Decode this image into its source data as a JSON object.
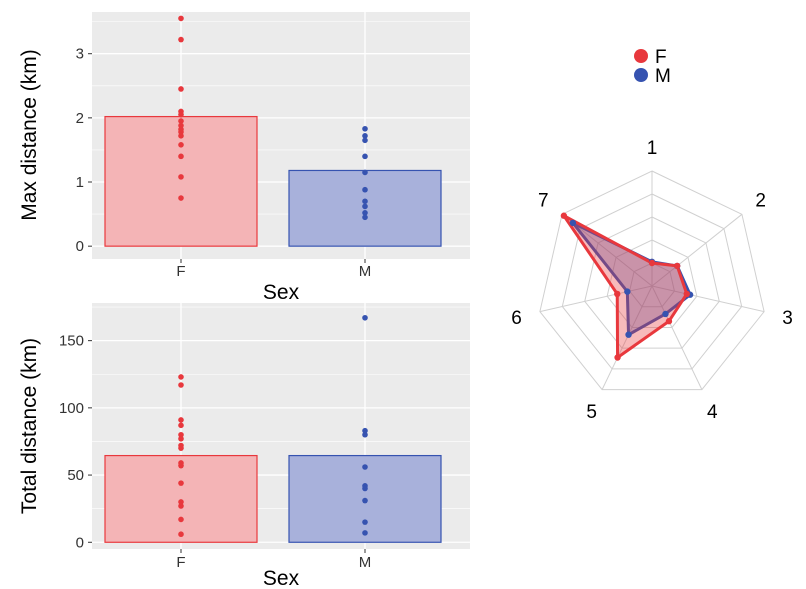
{
  "colors": {
    "F": "#e8383d",
    "M": "#3653b0",
    "F_fill": "#f4b4b6",
    "M_fill": "#a8b1db",
    "panel": "#ebebeb",
    "grid": "#ffffff"
  },
  "chart_data": [
    {
      "type": "bar",
      "xlabel": "Sex",
      "ylabel": "Max distance (km)",
      "categories": [
        "F",
        "M"
      ],
      "ylim": [
        -0.2,
        3.65
      ],
      "yticks": [
        0,
        1,
        2,
        3
      ],
      "grid": true,
      "series": [
        {
          "name": "F",
          "mean": 2.02,
          "points": [
            3.55,
            3.22,
            2.45,
            2.1,
            2.05,
            1.95,
            1.88,
            1.82,
            1.78,
            1.72,
            1.58,
            1.4,
            1.08,
            0.75
          ]
        },
        {
          "name": "M",
          "mean": 1.18,
          "points": [
            1.83,
            1.72,
            1.65,
            1.4,
            1.15,
            0.88,
            0.7,
            0.62,
            0.52,
            0.45
          ]
        }
      ]
    },
    {
      "type": "bar",
      "xlabel": "Sex",
      "ylabel": "Total distance (km)",
      "categories": [
        "F",
        "M"
      ],
      "ylim": [
        -5,
        178
      ],
      "yticks": [
        0,
        50,
        100,
        150
      ],
      "grid": true,
      "series": [
        {
          "name": "F",
          "mean": 64.5,
          "points": [
            123,
            117,
            91,
            87,
            80,
            77,
            72,
            70,
            59,
            57,
            44,
            30,
            27,
            17,
            6
          ]
        },
        {
          "name": "M",
          "mean": 64.5,
          "points": [
            167,
            83,
            80,
            56,
            42,
            40,
            31,
            15,
            7
          ]
        }
      ]
    },
    {
      "type": "radar",
      "axes": [
        "1",
        "2",
        "3",
        "4",
        "5",
        "6",
        "7"
      ],
      "max": 5,
      "legend": [
        "F",
        "M"
      ],
      "legend_position": "top",
      "series": [
        {
          "name": "F",
          "values": [
            1.0,
            1.4,
            1.55,
            1.7,
            3.45,
            1.55,
            4.9
          ]
        },
        {
          "name": "M",
          "values": [
            1.05,
            1.4,
            1.7,
            1.35,
            2.35,
            1.1,
            4.4
          ]
        }
      ]
    }
  ]
}
